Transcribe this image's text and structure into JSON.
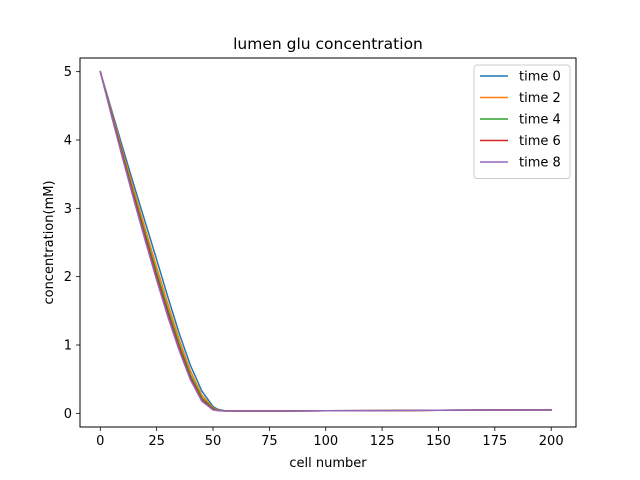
{
  "chart_data": {
    "type": "line",
    "title": "lumen glu concentration",
    "xlabel": "cell number",
    "ylabel": "concentration(mM)",
    "xlim": [
      -9,
      211
    ],
    "ylim": [
      -0.2,
      5.2
    ],
    "xticks": [
      0,
      25,
      50,
      75,
      100,
      125,
      150,
      175,
      200
    ],
    "yticks": [
      0,
      1,
      2,
      3,
      4,
      5
    ],
    "grid": false,
    "legend_position": "top-right",
    "series": [
      {
        "name": "time 0",
        "color": "#1f77b4",
        "x": [
          0,
          5,
          10,
          15,
          20,
          25,
          30,
          35,
          40,
          45,
          50,
          52,
          55,
          60,
          70,
          80,
          100,
          125,
          150,
          175,
          200
        ],
        "y": [
          5.0,
          4.44,
          3.88,
          3.33,
          2.79,
          2.25,
          1.7,
          1.17,
          0.7,
          0.33,
          0.1,
          0.06,
          0.04,
          0.035,
          0.035,
          0.035,
          0.037,
          0.04,
          0.045,
          0.048,
          0.05
        ]
      },
      {
        "name": "time 2",
        "color": "#ff7f0e",
        "x": [
          0,
          5,
          10,
          15,
          20,
          25,
          30,
          35,
          40,
          45,
          50,
          52,
          55,
          60,
          70,
          80,
          100,
          125,
          150,
          175,
          200
        ],
        "y": [
          5.0,
          4.41,
          3.82,
          3.25,
          2.69,
          2.14,
          1.6,
          1.08,
          0.62,
          0.27,
          0.08,
          0.05,
          0.037,
          0.035,
          0.035,
          0.035,
          0.037,
          0.04,
          0.045,
          0.048,
          0.05
        ]
      },
      {
        "name": "time 4",
        "color": "#2ca02c",
        "x": [
          0,
          5,
          10,
          15,
          20,
          25,
          30,
          35,
          40,
          45,
          50,
          52,
          55,
          60,
          70,
          80,
          100,
          125,
          150,
          175,
          200
        ],
        "y": [
          5.0,
          4.39,
          3.78,
          3.19,
          2.62,
          2.06,
          1.52,
          1.01,
          0.56,
          0.23,
          0.07,
          0.045,
          0.036,
          0.035,
          0.035,
          0.035,
          0.037,
          0.04,
          0.045,
          0.048,
          0.05
        ]
      },
      {
        "name": "time 6",
        "color": "#d62728",
        "x": [
          0,
          5,
          10,
          15,
          20,
          25,
          30,
          35,
          40,
          45,
          50,
          52,
          55,
          60,
          70,
          80,
          100,
          125,
          150,
          175,
          200
        ],
        "y": [
          5.0,
          4.37,
          3.75,
          3.15,
          2.57,
          2.0,
          1.46,
          0.96,
          0.52,
          0.2,
          0.06,
          0.042,
          0.035,
          0.035,
          0.035,
          0.035,
          0.037,
          0.04,
          0.045,
          0.048,
          0.05
        ]
      },
      {
        "name": "time 8",
        "color": "#9467bd",
        "x": [
          0,
          5,
          10,
          15,
          20,
          25,
          30,
          35,
          40,
          45,
          50,
          52,
          55,
          60,
          70,
          80,
          100,
          125,
          150,
          175,
          200
        ],
        "y": [
          5.0,
          4.35,
          3.72,
          3.11,
          2.52,
          1.95,
          1.41,
          0.92,
          0.49,
          0.18,
          0.05,
          0.04,
          0.035,
          0.035,
          0.035,
          0.035,
          0.037,
          0.04,
          0.045,
          0.048,
          0.05
        ]
      }
    ]
  }
}
